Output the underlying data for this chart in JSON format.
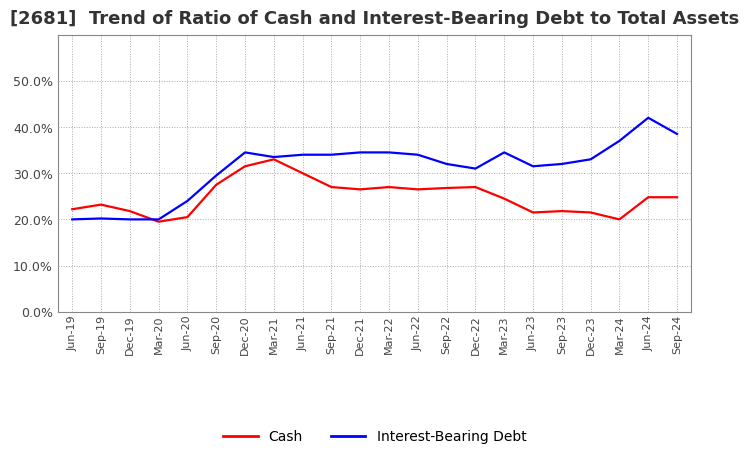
{
  "title": "[2681]  Trend of Ratio of Cash and Interest-Bearing Debt to Total Assets",
  "x_labels": [
    "Jun-19",
    "Sep-19",
    "Dec-19",
    "Mar-20",
    "Jun-20",
    "Sep-20",
    "Dec-20",
    "Mar-21",
    "Jun-21",
    "Sep-21",
    "Dec-21",
    "Mar-22",
    "Jun-22",
    "Sep-22",
    "Dec-22",
    "Mar-23",
    "Jun-23",
    "Sep-23",
    "Dec-23",
    "Mar-24",
    "Jun-24",
    "Sep-24"
  ],
  "cash": [
    0.222,
    0.232,
    0.218,
    0.195,
    0.205,
    0.275,
    0.315,
    0.33,
    0.3,
    0.27,
    0.265,
    0.27,
    0.265,
    0.268,
    0.27,
    0.245,
    0.215,
    0.218,
    0.215,
    0.2,
    0.248,
    0.248
  ],
  "ibd": [
    0.2,
    0.202,
    0.2,
    0.2,
    0.24,
    0.295,
    0.345,
    0.335,
    0.34,
    0.34,
    0.345,
    0.345,
    0.34,
    0.32,
    0.31,
    0.345,
    0.315,
    0.32,
    0.33,
    0.37,
    0.42,
    0.385
  ],
  "cash_color": "#FF0000",
  "ibd_color": "#0000FF",
  "background_color": "#FFFFFF",
  "plot_bg_color": "#FFFFFF",
  "grid_color": "#AAAAAA",
  "ylim": [
    0.0,
    0.6
  ],
  "yticks": [
    0.0,
    0.1,
    0.2,
    0.3,
    0.4,
    0.5
  ],
  "legend_cash": "Cash",
  "legend_ibd": "Interest-Bearing Debt",
  "title_fontsize": 13
}
